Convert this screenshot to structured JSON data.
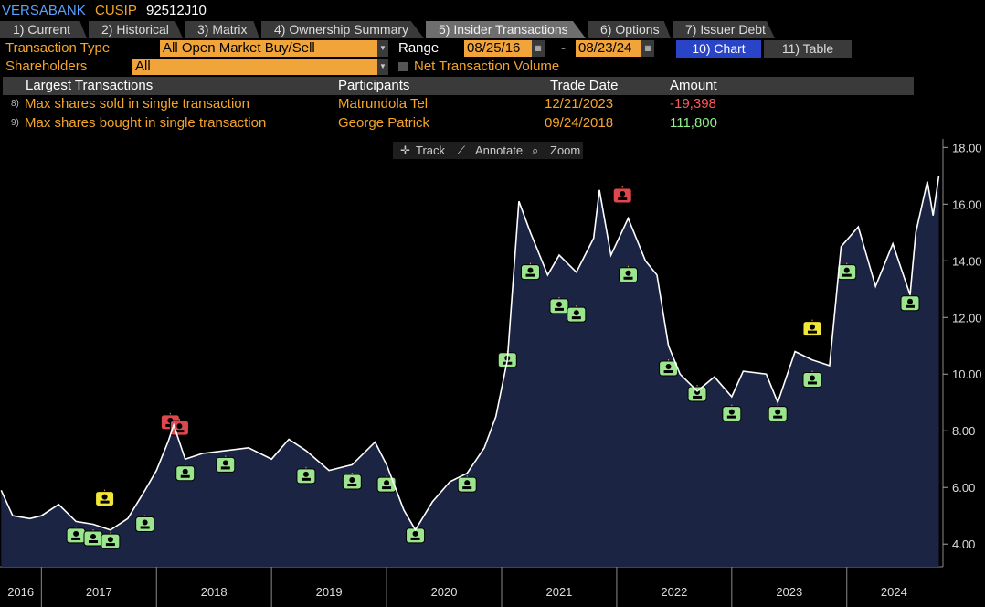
{
  "header": {
    "ticker": "VERSABANK",
    "cusip_label": "CUSIP",
    "cusip": "92512J10"
  },
  "tabs": [
    "1) Current",
    "2) Historical",
    "3) Matrix",
    "4) Ownership Summary",
    "5) Insider Transactions",
    "6) Options",
    "7) Issuer Debt"
  ],
  "filters": {
    "transaction_type_label": "Transaction Type",
    "transaction_type": "All Open Market Buy/Sell",
    "range_label": "Range",
    "range_start": "08/25/16",
    "range_sep": "-",
    "range_end": "08/23/24",
    "chart_button": "10) Chart",
    "table_button": "11) Table",
    "shareholders_label": "Shareholders",
    "shareholders": "All",
    "net_volume_label": "Net Transaction Volume"
  },
  "table": {
    "headers": [
      "Largest Transactions",
      "Participants",
      "Trade Date",
      "Amount"
    ],
    "rows": [
      [
        "8)",
        "Max shares sold in single transaction",
        "Matrundola Tel",
        "12/21/2023",
        "-19,398"
      ],
      [
        "9)",
        "Max shares bought in single transaction",
        "George Patrick",
        "09/24/2018",
        "111,800"
      ]
    ]
  },
  "toolbar": [
    "Track",
    "Annotate",
    "Zoom"
  ],
  "chart_data": {
    "type": "line",
    "color": "#ffffff",
    "area_color": "#1b2442",
    "x": [
      2016.65,
      2016.75,
      2016.9,
      2017.0,
      2017.15,
      2017.3,
      2017.45,
      2017.6,
      2017.75,
      2017.9,
      2018.0,
      2018.1,
      2018.15,
      2018.25,
      2018.4,
      2018.6,
      2018.8,
      2019.0,
      2019.15,
      2019.3,
      2019.5,
      2019.7,
      2019.9,
      2020.0,
      2020.15,
      2020.25,
      2020.4,
      2020.55,
      2020.7,
      2020.85,
      2020.95,
      2021.05,
      2021.15,
      2021.25,
      2021.4,
      2021.5,
      2021.65,
      2021.8,
      2021.85,
      2021.95,
      2022.1,
      2022.25,
      2022.35,
      2022.45,
      2022.55,
      2022.7,
      2022.85,
      2023.0,
      2023.1,
      2023.3,
      2023.4,
      2023.55,
      2023.7,
      2023.85,
      2023.95,
      2024.1,
      2024.25,
      2024.4,
      2024.55,
      2024.6,
      2024.7,
      2024.75,
      2024.8
    ],
    "values": [
      5.9,
      5.0,
      4.9,
      5.0,
      5.4,
      4.8,
      4.7,
      4.5,
      4.9,
      5.9,
      6.6,
      7.6,
      8.2,
      7.0,
      7.2,
      7.3,
      7.4,
      7.0,
      7.7,
      7.3,
      6.6,
      6.8,
      7.6,
      6.8,
      5.2,
      4.5,
      5.5,
      6.2,
      6.5,
      7.4,
      8.5,
      10.5,
      16.1,
      15.0,
      13.5,
      14.2,
      13.6,
      14.8,
      16.5,
      14.2,
      15.5,
      14.0,
      13.5,
      11.0,
      10.0,
      9.4,
      9.9,
      9.2,
      10.1,
      10.0,
      9.0,
      10.8,
      10.5,
      10.3,
      14.5,
      15.2,
      13.1,
      14.6,
      12.8,
      15.0,
      16.8,
      15.6,
      17.0
    ],
    "markers": [
      {
        "kind": "buy",
        "color": "#9be58f",
        "x": [
          2017.3,
          2017.45,
          2017.6,
          2017.9,
          2018.25,
          2018.6,
          2019.3,
          2019.7,
          2020.0,
          2020.25,
          2020.7,
          2021.05,
          2021.25,
          2021.5,
          2021.65,
          2022.1,
          2022.45,
          2022.7,
          2023.0,
          2023.4,
          2023.7,
          2024.0,
          2024.55
        ],
        "values": [
          4.3,
          4.2,
          4.1,
          4.7,
          6.5,
          6.8,
          6.4,
          6.2,
          6.1,
          4.3,
          6.1,
          10.5,
          13.6,
          12.4,
          12.1,
          13.5,
          10.2,
          9.3,
          8.6,
          8.6,
          9.8,
          13.6,
          12.5
        ]
      },
      {
        "kind": "sell",
        "color": "#e0474c",
        "x": [
          2018.12,
          2018.2,
          2022.05
        ],
        "values": [
          8.3,
          8.1,
          16.3
        ]
      },
      {
        "kind": "other",
        "color": "#f2e637",
        "x": [
          2017.55,
          2023.7
        ],
        "values": [
          5.6,
          11.6
        ]
      }
    ],
    "xlim": [
      2016.64,
      2024.82
    ],
    "xticks": [
      2017,
      2018,
      2019,
      2020,
      2021,
      2022,
      2023,
      2024
    ],
    "x_labels": [
      "2016",
      "2017",
      "2018",
      "2019",
      "2020",
      "2021",
      "2022",
      "2023",
      "2024"
    ],
    "ylim": [
      3.2,
      18.3
    ],
    "yticks": [
      {
        "value": 4,
        "label": "4.00"
      },
      {
        "value": 6,
        "label": "6.00"
      },
      {
        "value": 8,
        "label": "8.00"
      },
      {
        "value": 10,
        "label": "10.00"
      },
      {
        "value": 12,
        "label": "12.00"
      },
      {
        "value": 14,
        "label": "14.00"
      },
      {
        "value": 16,
        "label": "16.00"
      },
      {
        "value": 18,
        "label": "18.00"
      }
    ],
    "grid": false
  }
}
